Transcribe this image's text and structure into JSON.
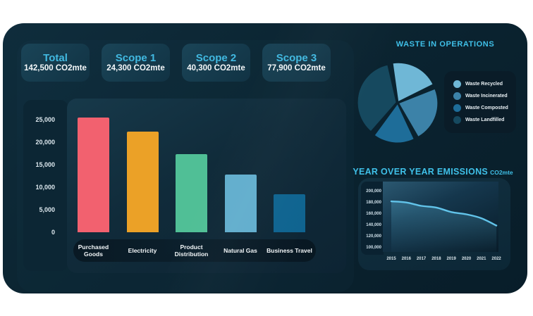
{
  "accent_color": "#3fc0e8",
  "summary_cards": [
    {
      "label": "Total",
      "value": "142,500 CO2mte"
    },
    {
      "label": "Scope 1",
      "value": "24,300 CO2mte"
    },
    {
      "label": "Scope 2",
      "value": "40,300 CO2mte"
    },
    {
      "label": "Scope 3",
      "value": "77,900 CO2mte"
    }
  ],
  "chart_data": [
    {
      "type": "bar",
      "title": "",
      "categories": [
        "Purchased Goods",
        "Electricity",
        "Product Distribution",
        "Natural Gas",
        "Business Travel"
      ],
      "values": [
        25500,
        22300,
        17300,
        12800,
        8500
      ],
      "bar_colors": [
        "#f2616f",
        "#eba127",
        "#50bf96",
        "#62aecd",
        "#0f6490"
      ],
      "ylim": [
        0,
        25000
      ],
      "ytick_labels": [
        "25,000",
        "20,000",
        "15,000",
        "10,000",
        "5,000",
        "0"
      ],
      "grid": false,
      "legend_position": "none"
    },
    {
      "type": "pie",
      "title": "WASTE IN OPERATIONS",
      "labels": [
        "Waste Recycled",
        "Waste Incinerated",
        "Waste Composted",
        "Waste Landfilled"
      ],
      "values": [
        21,
        24,
        18,
        37
      ],
      "colors": [
        "#6fb7d6",
        "#3c82a8",
        "#1e6d99",
        "#16495f"
      ],
      "legend_position": "right"
    },
    {
      "type": "area",
      "title": "YEAR OVER YEAR EMISSIONS",
      "title_suffix": "CO2mte",
      "x": [
        "2015",
        "2016",
        "2017",
        "2018",
        "2019",
        "2020",
        "2021",
        "2022"
      ],
      "values": [
        182000,
        180000,
        174000,
        171000,
        163000,
        159000,
        152000,
        139000
      ],
      "ylim": [
        100000,
        200000
      ],
      "ytick_labels": [
        "200,000",
        "180,000",
        "160,000",
        "140,000",
        "120,000",
        "100,000"
      ],
      "line_color": "#62c4ea",
      "grid": false,
      "legend_position": "none"
    }
  ]
}
